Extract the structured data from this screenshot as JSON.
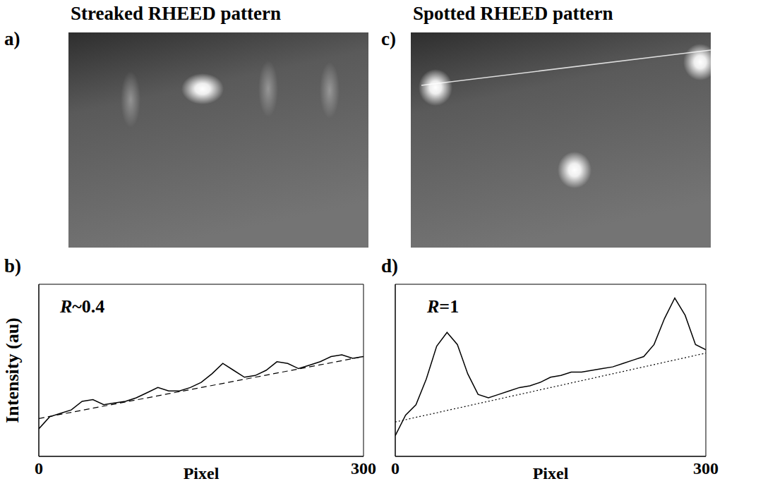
{
  "panels": [
    {
      "letter": "a)",
      "title": "Streaked RHEED pattern"
    },
    {
      "letter": "c)",
      "title": "Spotted RHEED pattern"
    }
  ],
  "chart_data": [
    {
      "letter": "b)",
      "type": "line",
      "annotation": "R~0.4",
      "xlabel": "Pixel",
      "ylabel": "Intensity (au)",
      "x": [
        0,
        10,
        20,
        30,
        40,
        50,
        60,
        70,
        80,
        90,
        100,
        110,
        120,
        130,
        140,
        150,
        160,
        170,
        180,
        190,
        200,
        210,
        220,
        230,
        240,
        250,
        260,
        270,
        280,
        290,
        300
      ],
      "xlim": [
        0,
        300
      ],
      "xticks": [
        0,
        300
      ],
      "ylim": [
        0,
        10
      ],
      "tick_labels": "x",
      "series": [
        {
          "color": "#000000",
          "line_style": "solid",
          "values": [
            1.6,
            2.3,
            2.5,
            2.7,
            3.2,
            3.3,
            3.0,
            3.1,
            3.2,
            3.4,
            3.7,
            4.0,
            3.8,
            3.8,
            4.0,
            4.3,
            4.8,
            5.4,
            5.0,
            4.6,
            4.7,
            5.0,
            5.5,
            5.4,
            5.1,
            5.3,
            5.5,
            5.8,
            5.9,
            5.7,
            5.8
          ]
        },
        {
          "color": "#000000",
          "line_style": "dashed",
          "values": [
            2.2,
            2.32,
            2.44,
            2.56,
            2.68,
            2.8,
            2.92,
            3.04,
            3.16,
            3.28,
            3.4,
            3.52,
            3.64,
            3.76,
            3.88,
            4.0,
            4.12,
            4.24,
            4.36,
            4.48,
            4.6,
            4.72,
            4.84,
            4.96,
            5.08,
            5.2,
            5.32,
            5.44,
            5.56,
            5.68,
            5.8
          ]
        }
      ]
    },
    {
      "letter": "d)",
      "type": "line",
      "annotation": "R=1",
      "xlabel": "Pixel",
      "x": [
        0,
        10,
        20,
        30,
        40,
        50,
        60,
        70,
        80,
        90,
        100,
        110,
        120,
        130,
        140,
        150,
        160,
        170,
        180,
        190,
        200,
        210,
        220,
        230,
        240,
        250,
        260,
        270,
        280,
        290,
        300
      ],
      "xlim": [
        0,
        300
      ],
      "xticks": [
        0,
        300
      ],
      "ylim": [
        0,
        10
      ],
      "tick_labels": "x",
      "series": [
        {
          "color": "#000000",
          "line_style": "solid",
          "values": [
            1.2,
            2.4,
            3.0,
            4.5,
            6.4,
            7.2,
            6.5,
            4.8,
            3.6,
            3.4,
            3.6,
            3.8,
            4.0,
            4.1,
            4.3,
            4.6,
            4.7,
            4.9,
            4.9,
            5.0,
            5.1,
            5.2,
            5.4,
            5.6,
            5.8,
            6.5,
            8.0,
            9.2,
            8.2,
            6.5,
            6.2
          ]
        },
        {
          "color": "#000000",
          "line_style": "dotted",
          "values": [
            2.0,
            2.13,
            2.27,
            2.4,
            2.53,
            2.67,
            2.8,
            2.93,
            3.07,
            3.2,
            3.33,
            3.47,
            3.6,
            3.73,
            3.87,
            4.0,
            4.13,
            4.27,
            4.4,
            4.53,
            4.67,
            4.8,
            4.93,
            5.07,
            5.2,
            5.33,
            5.47,
            5.6,
            5.73,
            5.87,
            6.0
          ]
        }
      ]
    }
  ]
}
